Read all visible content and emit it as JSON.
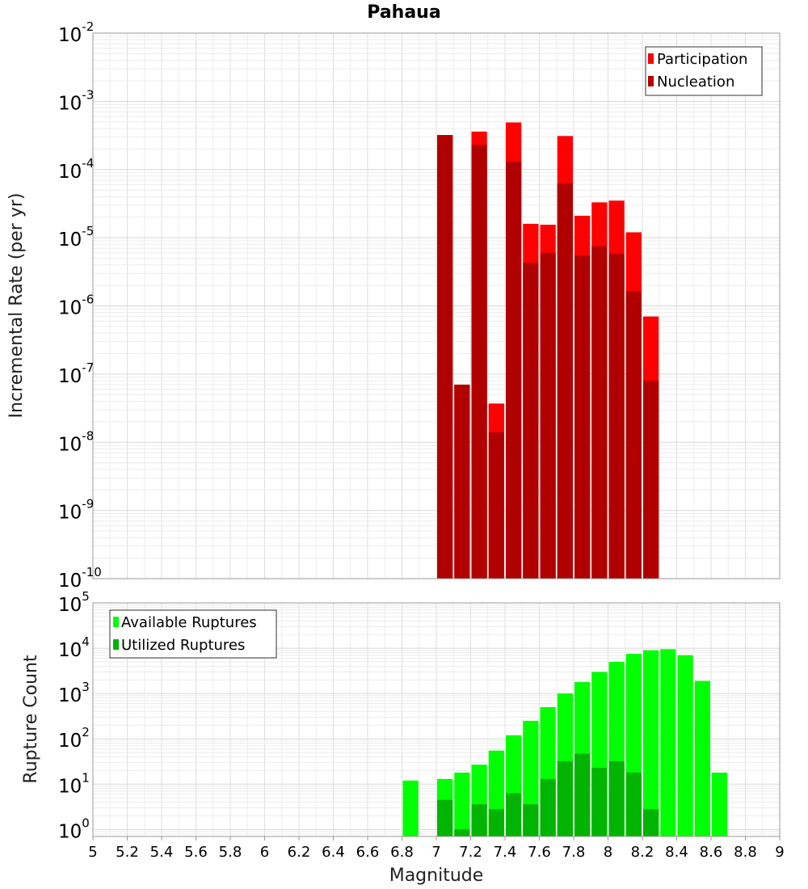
{
  "chart_data": [
    {
      "type": "bar",
      "title": "Pahaua",
      "ylabel": "Incremental Rate (per yr)",
      "xlabel": "",
      "yscale": "log",
      "ylim": [
        1e-10,
        0.01
      ],
      "xlim": [
        5,
        9
      ],
      "legend_position": "top-right",
      "grid": true,
      "bin_width": 0.1,
      "x": [
        7.05,
        7.15,
        7.25,
        7.35,
        7.45,
        7.55,
        7.65,
        7.75,
        7.85,
        7.95,
        8.05,
        8.15,
        8.25
      ],
      "series": [
        {
          "name": "Participation",
          "color": "#ff0000",
          "values": [
            0.00032,
            7e-08,
            0.00036,
            3.7e-08,
            0.00049,
            1.6e-05,
            1.55e-05,
            0.00031,
            2.1e-05,
            3.3e-05,
            3.5e-05,
            1.2e-05,
            7e-07
          ]
        },
        {
          "name": "Nucleation",
          "color": "#b00000",
          "values": [
            0.00032,
            7e-08,
            0.00023,
            1.4e-08,
            0.00013,
            4.3e-06,
            6e-06,
            6.3e-05,
            5.5e-06,
            7.5e-06,
            5.8e-06,
            1.65e-06,
            8e-08
          ]
        }
      ],
      "ytick_exponents": [
        "-10",
        "-9",
        "-8",
        "-7",
        "-6",
        "-5",
        "-4",
        "-3",
        "-2"
      ]
    },
    {
      "type": "bar",
      "title": "",
      "ylabel": "Rupture Count",
      "xlabel": "Magnitude",
      "yscale": "log",
      "ylim": [
        0.7,
        100000
      ],
      "xlim": [
        5,
        9
      ],
      "legend_position": "top-left",
      "grid": true,
      "bin_width": 0.1,
      "x": [
        6.85,
        7.05,
        7.15,
        7.25,
        7.35,
        7.45,
        7.55,
        7.65,
        7.75,
        7.85,
        7.95,
        8.05,
        8.15,
        8.25,
        8.35,
        8.45,
        8.55,
        8.65
      ],
      "series": [
        {
          "name": "Available Ruptures",
          "color": "#00ff00",
          "values": [
            12,
            13,
            18,
            27,
            55,
            120,
            250,
            500,
            1000,
            1800,
            3000,
            5000,
            7500,
            9000,
            9500,
            7000,
            1900,
            18
          ]
        },
        {
          "name": "Utilized Ruptures",
          "color": "#00b400",
          "values": [
            0,
            4.5,
            1.0,
            3.6,
            2.8,
            6.3,
            3.6,
            13,
            32,
            47,
            23,
            32,
            18,
            2.8,
            0,
            0,
            0,
            0
          ]
        }
      ],
      "ytick_exponents": [
        "0",
        "1",
        "2",
        "3",
        "4",
        "5"
      ],
      "xtick_labels": [
        "5",
        "5.2",
        "5.4",
        "5.6",
        "5.8",
        "6",
        "6.2",
        "6.4",
        "6.6",
        "6.8",
        "7",
        "7.2",
        "7.4",
        "7.6",
        "7.8",
        "8",
        "8.2",
        "8.4",
        "8.6",
        "8.8",
        "9"
      ]
    }
  ],
  "ytick_base": "10"
}
